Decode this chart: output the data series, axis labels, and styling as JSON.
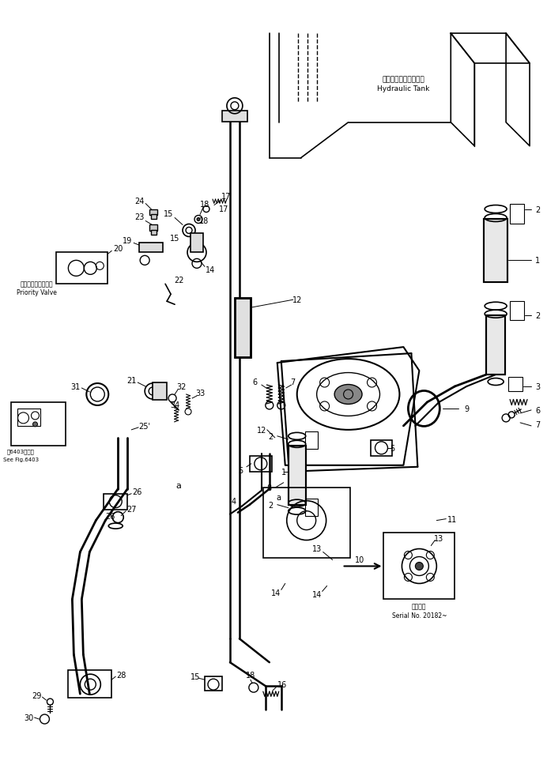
{
  "bg_color": "#ffffff",
  "line_color": "#000000",
  "fig_width": 6.92,
  "fig_height": 9.78,
  "dpi": 100,
  "labels": {
    "hydraulic_tank_jp": "ハイドロリックタンク",
    "hydraulic_tank_en": "Hydraulic Tank",
    "priority_valve_jp": "プリオリティバルブ",
    "priority_valve_en": "Priority Valve",
    "see_fig_jp": "図6403を参照",
    "see_fig_en": "See Fig.6403",
    "serial_jp": "適用番号",
    "serial_en": "Serial No. 20182~"
  }
}
